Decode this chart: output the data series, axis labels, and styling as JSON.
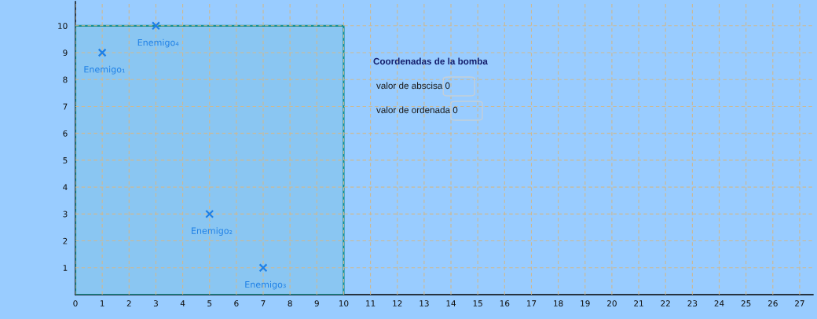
{
  "chart_data": {
    "type": "scatter",
    "series": [
      {
        "type": "area",
        "x": [
          0,
          10
        ],
        "values": [
          10,
          10
        ],
        "color": "#8ac6f2"
      },
      {
        "x": [
          1,
          5,
          7,
          3
        ],
        "values": [
          9,
          3,
          1,
          10
        ],
        "color": "#1f80e6",
        "marker": "cross"
      }
    ],
    "xlim": [
      0,
      27.5
    ],
    "ylim": [
      0,
      10.9
    ],
    "xticks": [
      0,
      1,
      2,
      3,
      4,
      5,
      6,
      7,
      8,
      9,
      10,
      11,
      12,
      13,
      14,
      15,
      16,
      17,
      18,
      19,
      20,
      21,
      22,
      23,
      24,
      25,
      26,
      27
    ],
    "yticks": [
      1,
      2,
      3,
      4,
      5,
      6,
      7,
      8,
      9,
      10
    ],
    "grid": true,
    "annotations": [
      {
        "text": "Enemigo₁",
        "x": 1,
        "y": 9
      },
      {
        "text": "Enemigo₂",
        "x": 5,
        "y": 3
      },
      {
        "text": "Enemigo₃",
        "x": 7,
        "y": 1
      },
      {
        "text": "Enemigo₄",
        "x": 3,
        "y": 10
      },
      "Coordenadas de la bomba",
      "valor de abscisa 0",
      "valor de ordenada 0"
    ]
  }
}
